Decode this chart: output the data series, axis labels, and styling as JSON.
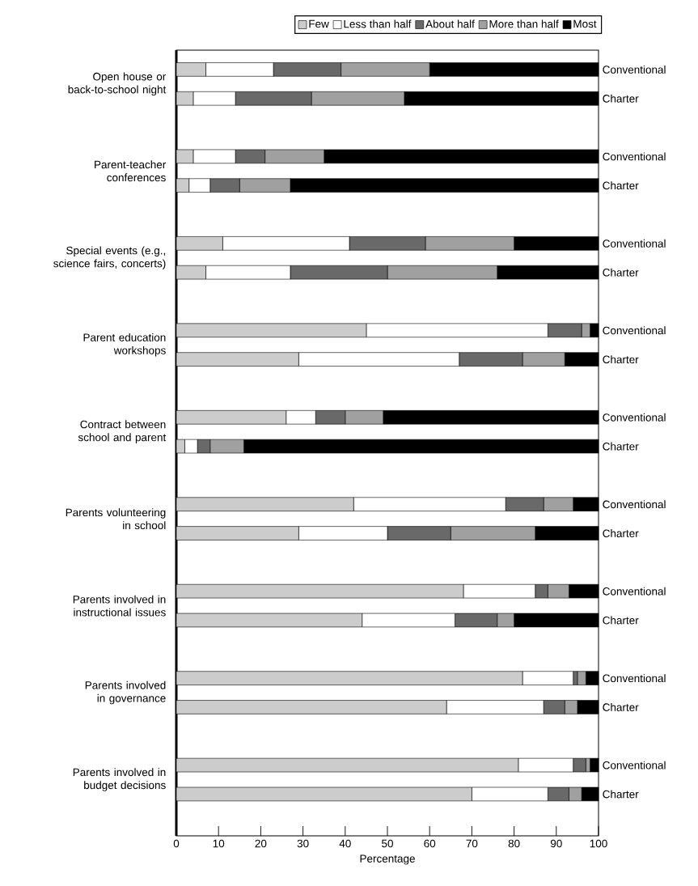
{
  "chart_data": {
    "type": "bar",
    "orientation": "horizontal",
    "stacked": true,
    "categories": [
      "Conventional",
      "Charter",
      "Conventional",
      "Charter",
      "Conventional",
      "Charter",
      "Conventional",
      "Charter",
      "Conventional",
      "Charter",
      "Conventional",
      "Charter",
      "Conventional",
      "Charter",
      "Conventional",
      "Charter",
      "Conventional",
      "Charter"
    ],
    "series": [
      {
        "name": "Few",
        "color": "#cccccc",
        "values": [
          7,
          4,
          4,
          3,
          11,
          7,
          45,
          29,
          26,
          2,
          42,
          29,
          68,
          44,
          82,
          64,
          81,
          70
        ]
      },
      {
        "name": "Less than half",
        "color": "#ffffff",
        "values": [
          16,
          10,
          10,
          5,
          30,
          20,
          43,
          38,
          7,
          3,
          36,
          21,
          17,
          22,
          12,
          23,
          13,
          18
        ]
      },
      {
        "name": "About half",
        "color": "#696969",
        "values": [
          16,
          18,
          7,
          7,
          18,
          23,
          8,
          15,
          7,
          3,
          9,
          15,
          3,
          10,
          1,
          5,
          3,
          5
        ]
      },
      {
        "name": "More than half",
        "color": "#a0a0a0",
        "values": [
          21,
          22,
          14,
          12,
          21,
          26,
          2,
          10,
          9,
          8,
          7,
          20,
          5,
          4,
          2,
          3,
          1,
          3
        ]
      },
      {
        "name": "Most",
        "color": "#000000",
        "values": [
          40,
          46,
          65,
          73,
          20,
          24,
          2,
          8,
          51,
          84,
          6,
          15,
          7,
          20,
          3,
          5,
          2,
          4
        ]
      }
    ],
    "xlim": [
      0,
      100
    ],
    "xticks": [
      0,
      10,
      20,
      30,
      40,
      50,
      60,
      70,
      80,
      90,
      100
    ],
    "xlabel": "Percentage",
    "legend": "top",
    "annotations": [
      "Open house or back-to-school night",
      "Parent-teacher conferences",
      "Special events (e.g., science fairs, concerts)",
      "Parent education workshops",
      "Contract between school and parent",
      "Parents volunteering in school",
      "Parents involved in instructional issues",
      "Parents involved in governance",
      "Parents involved in budget decisions"
    ]
  }
}
